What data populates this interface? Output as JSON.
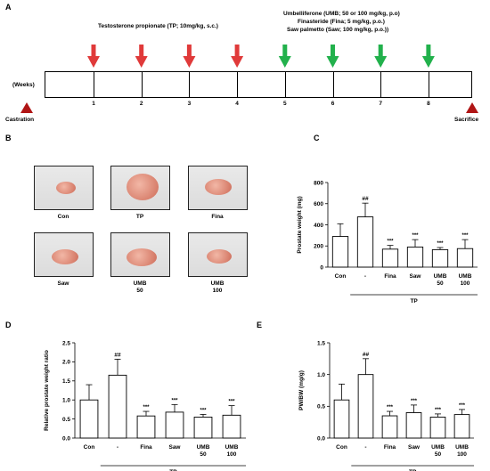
{
  "panels": {
    "A": "A",
    "B": "B",
    "C": "C",
    "D": "D",
    "E": "E"
  },
  "timeline": {
    "tp_label": "Testosterone propionate (TP; 10mg/kg, s.c.)",
    "treat_line1": "Umbelliferone (UMB; 50 or 100 mg/kg, p.o)",
    "treat_line2": "Finasteride (Fina; 5 mg/kg, p.o.)",
    "treat_line3": "Saw palmetto (Saw; 100 mg/kg, p.o.))",
    "weeks_label": "(Weeks)",
    "weeks": [
      "1",
      "2",
      "3",
      "4",
      "5",
      "6",
      "7",
      "8"
    ],
    "castration": "Castration",
    "sacrifice": "Sacrifice",
    "red_arrow_color": "#e03a3a",
    "green_arrow_color": "#22b14c",
    "triangle_color": "#b01515"
  },
  "photos": {
    "labels": [
      "Con",
      "TP",
      "Fina",
      "Saw",
      "UMB\n50",
      "UMB\n100"
    ],
    "label_lines": [
      [
        "Con"
      ],
      [
        "TP"
      ],
      [
        "Fina"
      ],
      [
        "Saw"
      ],
      [
        "UMB",
        "50"
      ],
      [
        "UMB",
        "100"
      ]
    ]
  },
  "chart_data": [
    {
      "panel": "C",
      "type": "bar",
      "ylabel": "Prostate weight (mg)",
      "ylim": [
        0,
        800
      ],
      "yticks": [
        "0",
        "200",
        "400",
        "600",
        "800"
      ],
      "categories": [
        "Con",
        "-",
        "Fina",
        "Saw",
        "UMB 50",
        "UMB 100"
      ],
      "cat_lines": [
        [
          "Con"
        ],
        [
          "-"
        ],
        [
          "Fina"
        ],
        [
          "Saw"
        ],
        [
          "UMB",
          "50"
        ],
        [
          "UMB",
          "100"
        ]
      ],
      "values": [
        290,
        475,
        170,
        190,
        165,
        175
      ],
      "errors": [
        120,
        130,
        35,
        70,
        20,
        85
      ],
      "annotations": [
        "",
        "##",
        "***",
        "***",
        "***",
        "***"
      ],
      "group_label": "TP"
    },
    {
      "panel": "D",
      "type": "bar",
      "ylabel": "Relative prostate weight ratio",
      "ylim": [
        0,
        2.5
      ],
      "yticks": [
        "0.0",
        "0.5",
        "1.0",
        "1.5",
        "2.0",
        "2.5"
      ],
      "categories": [
        "Con",
        "-",
        "Fina",
        "Saw",
        "UMB 50",
        "UMB 100"
      ],
      "cat_lines": [
        [
          "Con"
        ],
        [
          "-"
        ],
        [
          "Fina"
        ],
        [
          "Saw"
        ],
        [
          "UMB",
          "50"
        ],
        [
          "UMB",
          "100"
        ]
      ],
      "values": [
        1.0,
        1.65,
        0.58,
        0.68,
        0.55,
        0.6
      ],
      "errors": [
        0.4,
        0.42,
        0.12,
        0.2,
        0.07,
        0.25
      ],
      "annotations": [
        "",
        "##",
        "***",
        "***",
        "***",
        "***"
      ],
      "group_label": "TP"
    },
    {
      "panel": "E",
      "type": "bar",
      "ylabel": "PW/BW (mg/g)",
      "ylim": [
        0,
        1.5
      ],
      "yticks": [
        "0.0",
        "0.5",
        "1.0",
        "1.5"
      ],
      "categories": [
        "Con",
        "-",
        "Fina",
        "Saw",
        "UMB 50",
        "UMB 100"
      ],
      "cat_lines": [
        [
          "Con"
        ],
        [
          "-"
        ],
        [
          "Fina"
        ],
        [
          "Saw"
        ],
        [
          "UMB",
          "50"
        ],
        [
          "UMB",
          "100"
        ]
      ],
      "values": [
        0.6,
        1.0,
        0.35,
        0.4,
        0.33,
        0.37
      ],
      "errors": [
        0.25,
        0.25,
        0.07,
        0.12,
        0.05,
        0.08
      ],
      "annotations": [
        "",
        "##",
        "***",
        "***",
        "***",
        "***"
      ],
      "group_label": "TP"
    }
  ]
}
